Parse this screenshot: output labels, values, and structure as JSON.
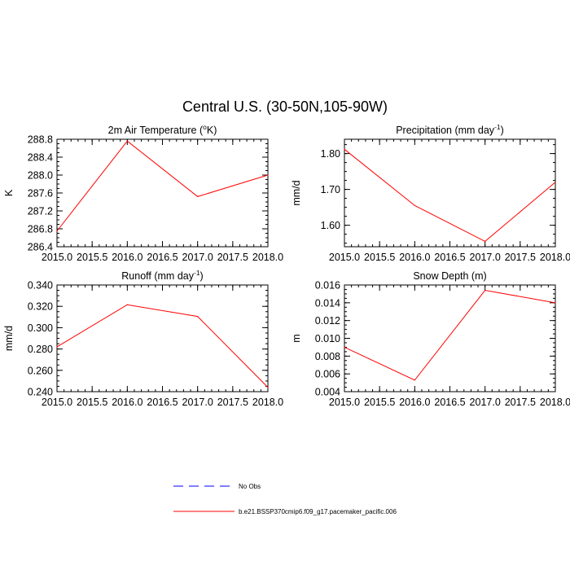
{
  "figure": {
    "title": "Central U.S. (30-50N,105-90W)"
  },
  "legend": {
    "entries": [
      {
        "label": "No Obs",
        "color": "#0000ff",
        "style": "dashed"
      },
      {
        "label": "b.e21.BSSP370cmip6.f09_g17.pacemaker_pacific.006",
        "color": "#ff0000",
        "style": "solid"
      }
    ]
  },
  "colors": {
    "model_line": "#ff0000",
    "obs_line": "#0000ff",
    "axes": "#000000"
  },
  "chart_data": [
    {
      "type": "line",
      "title": "2m Air Temperature (°K)",
      "title_parts": [
        "2m Air Temperature (",
        "o",
        "K)"
      ],
      "xlabel": "",
      "ylabel": "K",
      "xlim": [
        2015.0,
        2018.0
      ],
      "ylim": [
        286.4,
        288.8
      ],
      "xticks": [
        2015.0,
        2015.5,
        2016.0,
        2016.5,
        2017.0,
        2017.5,
        2018.0
      ],
      "xtick_labels": [
        "2015.0",
        "2015.5",
        "2016.0",
        "2016.5",
        "2017.0",
        "2017.5",
        "2018.0"
      ],
      "yticks": [
        286.4,
        286.8,
        287.2,
        287.6,
        288.0,
        288.4,
        288.8
      ],
      "ytick_labels": [
        "286.4",
        "286.8",
        "287.2",
        "287.6",
        "288.0",
        "288.4",
        "288.8"
      ],
      "grid": false,
      "x": [
        2015,
        2016,
        2017,
        2018
      ],
      "series": [
        {
          "name": "b.e21.BSSP370cmip6.f09_g17.pacemaker_pacific.006",
          "values": [
            286.75,
            288.76,
            287.52,
            288.0
          ]
        }
      ]
    },
    {
      "type": "line",
      "title": "Precipitation (mm day-1)",
      "title_parts": [
        "Precipitation (mm day",
        "-1",
        ")"
      ],
      "xlabel": "",
      "ylabel": "mm/d",
      "xlim": [
        2015.0,
        2018.0
      ],
      "ylim": [
        1.54,
        1.84
      ],
      "xticks": [
        2015.0,
        2015.5,
        2016.0,
        2016.5,
        2017.0,
        2017.5,
        2018.0
      ],
      "xtick_labels": [
        "2015.0",
        "2015.5",
        "2016.0",
        "2016.5",
        "2017.0",
        "2017.5",
        "2018.0"
      ],
      "yticks": [
        1.6,
        1.7,
        1.8
      ],
      "ytick_labels": [
        "1.60",
        "1.70",
        "1.80"
      ],
      "grid": false,
      "x": [
        2015,
        2016,
        2017,
        2018
      ],
      "series": [
        {
          "name": "b.e21.BSSP370cmip6.f09_g17.pacemaker_pacific.006",
          "values": [
            1.812,
            1.655,
            1.555,
            1.72
          ]
        }
      ]
    },
    {
      "type": "line",
      "title": "Runoff (mm day-1)",
      "title_parts": [
        "Runoff (mm day",
        "-1",
        ")"
      ],
      "xlabel": "",
      "ylabel": "mm/d",
      "xlim": [
        2015.0,
        2018.0
      ],
      "ylim": [
        0.24,
        0.34
      ],
      "xticks": [
        2015.0,
        2015.5,
        2016.0,
        2016.5,
        2017.0,
        2017.5,
        2018.0
      ],
      "xtick_labels": [
        "2015.0",
        "2015.5",
        "2016.0",
        "2016.5",
        "2017.0",
        "2017.5",
        "2018.0"
      ],
      "yticks": [
        0.24,
        0.26,
        0.28,
        0.3,
        0.32,
        0.34
      ],
      "ytick_labels": [
        "0.240",
        "0.260",
        "0.280",
        "0.300",
        "0.320",
        "0.340"
      ],
      "grid": false,
      "x": [
        2015,
        2016,
        2017,
        2018
      ],
      "series": [
        {
          "name": "b.e21.BSSP370cmip6.f09_g17.pacemaker_pacific.006",
          "values": [
            0.282,
            0.3215,
            0.3105,
            0.244
          ]
        }
      ]
    },
    {
      "type": "line",
      "title": "Snow Depth (m)",
      "title_parts": [
        "Snow Depth (m)",
        "",
        ""
      ],
      "xlabel": "",
      "ylabel": "m",
      "xlim": [
        2015.0,
        2018.0
      ],
      "ylim": [
        0.004,
        0.016
      ],
      "xticks": [
        2015.0,
        2015.5,
        2016.0,
        2016.5,
        2017.0,
        2017.5,
        2018.0
      ],
      "xtick_labels": [
        "2015.0",
        "2015.5",
        "2016.0",
        "2016.5",
        "2017.0",
        "2017.5",
        "2018.0"
      ],
      "yticks": [
        0.004,
        0.006,
        0.008,
        0.01,
        0.012,
        0.014,
        0.016
      ],
      "ytick_labels": [
        "0.004",
        "0.006",
        "0.008",
        "0.010",
        "0.012",
        "0.014",
        "0.016"
      ],
      "grid": false,
      "x": [
        2015,
        2016,
        2017,
        2018
      ],
      "series": [
        {
          "name": "b.e21.BSSP370cmip6.f09_g17.pacemaker_pacific.006",
          "values": [
            0.009,
            0.0053,
            0.0154,
            0.014
          ]
        }
      ]
    }
  ]
}
